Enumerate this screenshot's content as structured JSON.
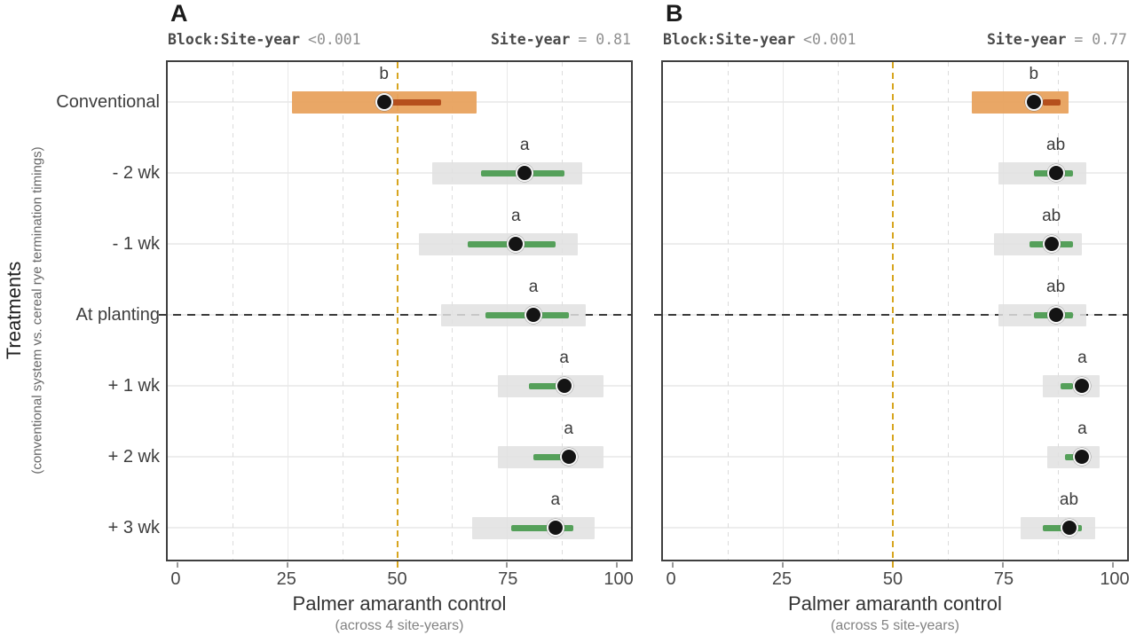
{
  "figure": {
    "y_axis_title": "Treatments",
    "y_axis_subtitle": "(conventional system vs. cereal rye termination timings)",
    "colors": {
      "highlight_bar": "#e8a25e",
      "highlight_bar_fill": "rgba(232,162,94,0.95)",
      "highlight_inner": "#b54f1d",
      "default_bar": "#e3e3e3",
      "default_bar_fill": "rgba(225,225,225,0.85)",
      "default_inner": "#55a05a",
      "point": "#141414",
      "point_ring": "#f7f7f7",
      "vline": "#d7a51f",
      "hline": "#3a3a3a",
      "panel_border": "#3f3f3f",
      "grid_major": "#e9e9e9",
      "grid_minor": "#dcdcdc",
      "stats_label": "#4a4a4a",
      "stats_value": "#8f8f8f"
    },
    "minor_gridlines_x": [
      12.5,
      37.5,
      62.5,
      87.5
    ],
    "major_gridlines_x": [
      25,
      75
    ]
  },
  "chart_data": [
    {
      "type": "dot-interval",
      "tag": "A",
      "stats": {
        "left_label": "Block:Site-year",
        "left_value": "<0.001",
        "right_label": "Site-year",
        "right_value": "= 0.81"
      },
      "xlabel": "Palmer amaranth control",
      "x_subtitle": "(across 4 site-years)",
      "xlim": [
        0,
        100
      ],
      "x_ticks": [
        0,
        25,
        50,
        75,
        100
      ],
      "vline_x": 50,
      "hline_category": "At planting",
      "show_y_labels": true,
      "highlight_category": "Conventional",
      "categories": [
        "Conventional",
        "- 2 wk",
        "- 1 wk",
        "At planting",
        "+ 1 wk",
        "+ 2 wk",
        "+ 3 wk"
      ],
      "series": [
        {
          "name": "point_estimate",
          "values": [
            47,
            79,
            77,
            81,
            88,
            89,
            86
          ]
        },
        {
          "name": "outer_interval",
          "values": [
            [
              26,
              68
            ],
            [
              58,
              92
            ],
            [
              55,
              91
            ],
            [
              60,
              93
            ],
            [
              73,
              97
            ],
            [
              73,
              97
            ],
            [
              67,
              95
            ]
          ]
        },
        {
          "name": "inner_interval",
          "values": [
            [
              47,
              60
            ],
            [
              69,
              88
            ],
            [
              66,
              86
            ],
            [
              70,
              89
            ],
            [
              80,
              88
            ],
            [
              81,
              88
            ],
            [
              76,
              90
            ]
          ]
        }
      ],
      "sig_letters": [
        "b",
        "a",
        "a",
        "a",
        "a",
        "a",
        "a"
      ]
    },
    {
      "type": "dot-interval",
      "tag": "B",
      "stats": {
        "left_label": "Block:Site-year",
        "left_value": "<0.001",
        "right_label": "Site-year",
        "right_value": "= 0.77"
      },
      "xlabel": "Palmer amaranth control",
      "x_subtitle": "(across 5 site-years)",
      "xlim": [
        0,
        100
      ],
      "x_ticks": [
        0,
        25,
        50,
        75,
        100
      ],
      "vline_x": 50,
      "hline_category": "At planting",
      "show_y_labels": false,
      "highlight_category": "Conventional",
      "categories": [
        "Conventional",
        "- 2 wk",
        "- 1 wk",
        "At planting",
        "+ 1 wk",
        "+ 2 wk",
        "+ 3 wk"
      ],
      "series": [
        {
          "name": "point_estimate",
          "values": [
            82,
            87,
            86,
            87,
            93,
            93,
            90
          ]
        },
        {
          "name": "outer_interval",
          "values": [
            [
              68,
              90
            ],
            [
              74,
              94
            ],
            [
              73,
              93
            ],
            [
              74,
              94
            ],
            [
              84,
              97
            ],
            [
              85,
              97
            ],
            [
              79,
              96
            ]
          ]
        },
        {
          "name": "inner_interval",
          "values": [
            [
              84,
              88
            ],
            [
              82,
              91
            ],
            [
              81,
              91
            ],
            [
              82,
              91
            ],
            [
              88,
              91
            ],
            [
              89,
              92
            ],
            [
              84,
              93
            ]
          ]
        }
      ],
      "sig_letters": [
        "b",
        "ab",
        "ab",
        "ab",
        "a",
        "a",
        "ab"
      ]
    }
  ]
}
